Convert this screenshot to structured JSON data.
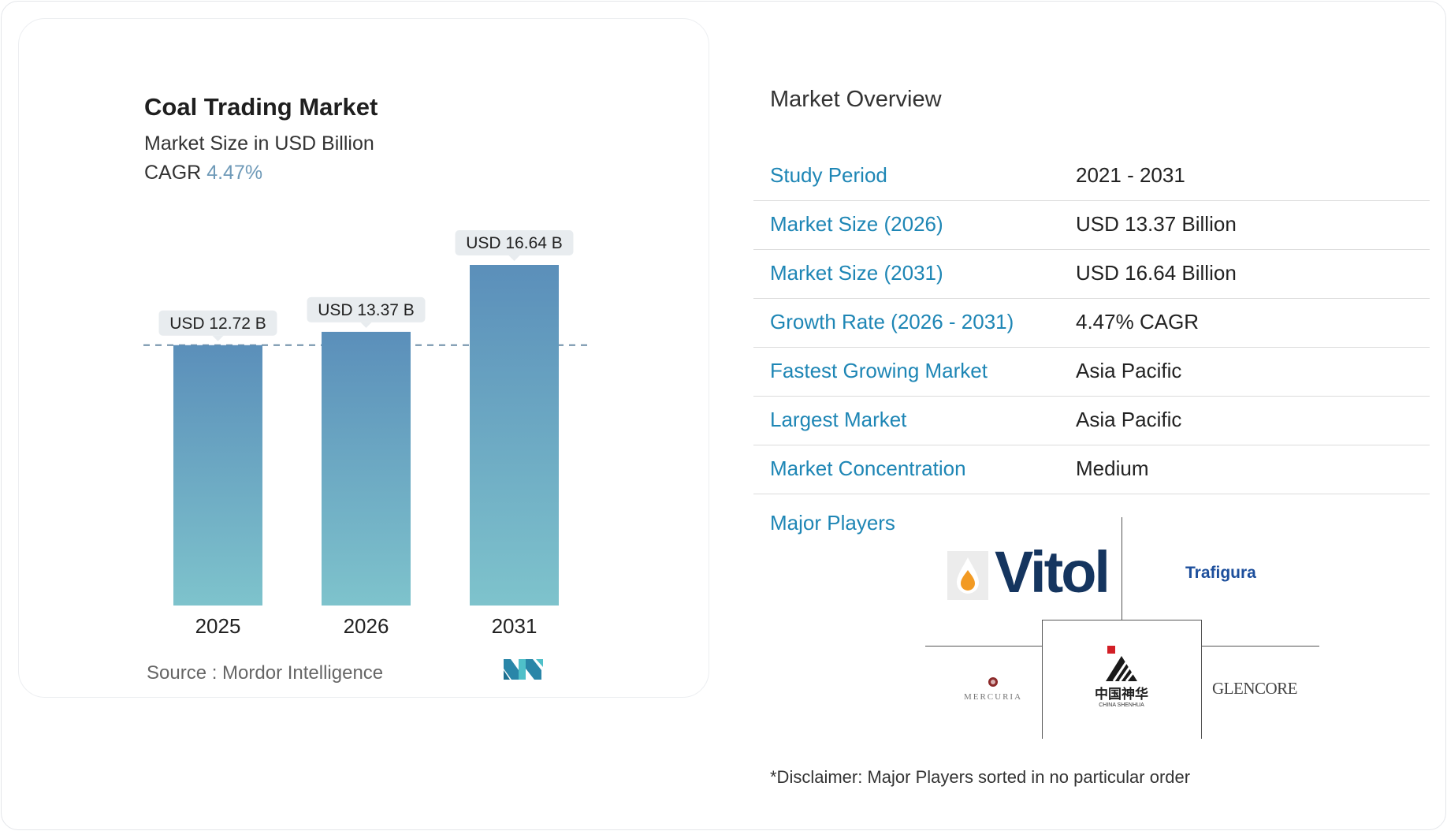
{
  "chart_data": {
    "type": "bar",
    "title": "Coal Trading Market",
    "subtitle": "Market Size in USD Billion",
    "cagr_label": "CAGR",
    "cagr_value": "4.47%",
    "categories": [
      "2025",
      "2026",
      "2031"
    ],
    "values": [
      12.72,
      13.37,
      16.64
    ],
    "data_labels": [
      "USD 12.72 B",
      "USD 13.37 B",
      "USD 16.64 B"
    ],
    "reference_line_value": 12.72,
    "ylim": [
      0,
      16.64
    ],
    "grid": false,
    "colors": {
      "bar_top": "#5b8fba",
      "bar_bottom": "#7ec3cc",
      "dash": "#6d8ea7",
      "label_bg": "#e8ecef"
    }
  },
  "source": "Source :  Mordor Intelligence",
  "overview": {
    "title": "Market Overview",
    "rows": [
      {
        "key": "Study Period",
        "value": "2021 - 2031"
      },
      {
        "key": "Market Size (2026)",
        "value": "USD 13.37 Billion"
      },
      {
        "key": "Market Size (2031)",
        "value": "USD 16.64 Billion"
      },
      {
        "key": "Growth Rate (2026 - 2031)",
        "value": "4.47% CAGR"
      },
      {
        "key": "Fastest Growing Market",
        "value": "Asia Pacific"
      },
      {
        "key": "Largest Market",
        "value": "Asia Pacific"
      },
      {
        "key": "Market Concentration",
        "value": "Medium"
      }
    ],
    "players_label": "Major Players",
    "players": [
      "Vitol",
      "Trafigura",
      "MERCURIA",
      "中国神华",
      "CHINA SHENHUA",
      "GLENCORE"
    ]
  },
  "disclaimer": "*Disclaimer: Major Players sorted in no particular order"
}
